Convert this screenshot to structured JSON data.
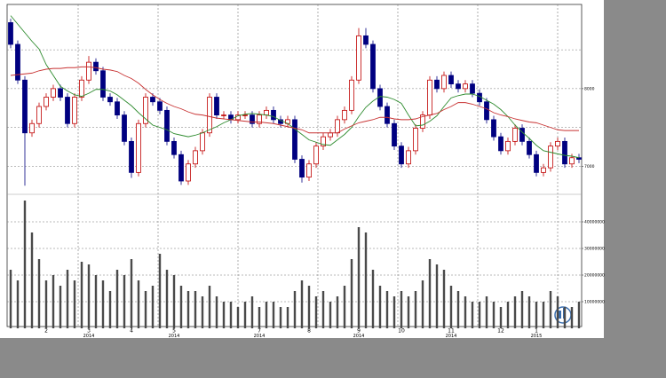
{
  "chart_data": [
    {
      "type": "candlestick",
      "ylim": [
        6650,
        9050
      ],
      "yticks": [
        7000,
        8000
      ],
      "ygrid": [
        7000,
        7500,
        8000,
        8500
      ],
      "up_color": "#ffffff",
      "up_border": "#c00000",
      "down_color": "#000080",
      "open": [
        8850,
        8570,
        8110,
        7430,
        7550,
        7770,
        7890,
        8000,
        7890,
        7550,
        7890,
        8110,
        8340,
        8230,
        7890,
        7830,
        7660,
        7320,
        6920,
        7550,
        7890,
        7830,
        7720,
        7320,
        7150,
        6810,
        7030,
        7200,
        7430,
        7890,
        7660,
        7660,
        7600,
        7660,
        7660,
        7550,
        7660,
        7720,
        7600,
        7550,
        7600,
        7090,
        6860,
        7030,
        7260,
        7380,
        7430,
        7600,
        7720,
        8110,
        8680,
        8570,
        8000,
        7770,
        7550,
        7260,
        7030,
        7200,
        7490,
        7660,
        8110,
        8000,
        8170,
        8060,
        8000,
        8060,
        7940,
        7830,
        7600,
        7380,
        7200,
        7320,
        7490,
        7320,
        7150,
        6920,
        6980,
        7260,
        7320,
        7030,
        7110
      ],
      "high": [
        8900,
        8620,
        8160,
        7600,
        7820,
        7940,
        8050,
        8050,
        7940,
        7940,
        8160,
        8420,
        8390,
        8280,
        7940,
        7880,
        7710,
        7370,
        7600,
        7940,
        7940,
        7880,
        7770,
        7370,
        7200,
        7080,
        7250,
        7480,
        7940,
        7940,
        7710,
        7710,
        7710,
        7710,
        7710,
        7710,
        7770,
        7770,
        7650,
        7650,
        7650,
        7140,
        7080,
        7310,
        7430,
        7480,
        7650,
        7770,
        8160,
        8780,
        8780,
        8620,
        8050,
        7820,
        7600,
        7310,
        7250,
        7540,
        7710,
        8160,
        8160,
        8220,
        8220,
        8110,
        8110,
        8110,
        7990,
        7880,
        7650,
        7430,
        7370,
        7540,
        7540,
        7370,
        7200,
        7030,
        7310,
        7370,
        7370,
        7160,
        7160
      ],
      "low": [
        8520,
        8060,
        6750,
        7380,
        7500,
        7720,
        7840,
        7840,
        7500,
        7500,
        7840,
        8060,
        8180,
        7840,
        7780,
        7610,
        7270,
        6850,
        6870,
        7500,
        7780,
        7670,
        7270,
        7100,
        6760,
        6760,
        6980,
        7150,
        7380,
        7610,
        7610,
        7550,
        7550,
        7610,
        7500,
        7500,
        7610,
        7550,
        7500,
        7500,
        7040,
        6790,
        6810,
        6980,
        7210,
        7330,
        7380,
        7550,
        7670,
        8060,
        8520,
        7950,
        7720,
        7500,
        7210,
        6980,
        6980,
        7150,
        7440,
        7610,
        7950,
        7950,
        8010,
        7950,
        7950,
        7890,
        7780,
        7550,
        7330,
        7150,
        7150,
        7270,
        7270,
        7100,
        6870,
        6870,
        6930,
        7210,
        6980,
        6980,
        7040
      ],
      "close": [
        8570,
        8110,
        7430,
        7550,
        7770,
        7890,
        8000,
        7890,
        7550,
        7890,
        8110,
        8340,
        8230,
        7890,
        7830,
        7660,
        7320,
        6920,
        7550,
        7890,
        7830,
        7720,
        7320,
        7150,
        6810,
        7030,
        7200,
        7430,
        7890,
        7660,
        7660,
        7600,
        7660,
        7660,
        7550,
        7660,
        7720,
        7600,
        7550,
        7600,
        7090,
        6860,
        7030,
        7260,
        7380,
        7430,
        7600,
        7720,
        8110,
        8680,
        8570,
        8000,
        7770,
        7550,
        7260,
        7030,
        7200,
        7490,
        7660,
        8110,
        8000,
        8170,
        8060,
        8000,
        8060,
        7940,
        7830,
        7600,
        7380,
        7200,
        7320,
        7490,
        7320,
        7150,
        6920,
        6980,
        7260,
        7320,
        7030,
        7110,
        7090
      ],
      "lines": [
        {
          "color": "#2e8b2e",
          "values": [
            8940,
            8830,
            8720,
            8610,
            8510,
            8310,
            8170,
            8030,
            7970,
            7920,
            7900,
            7940,
            7990,
            7990,
            7970,
            7920,
            7850,
            7780,
            7690,
            7610,
            7530,
            7500,
            7470,
            7420,
            7400,
            7380,
            7400,
            7430,
            7470,
            7510,
            7560,
            7600,
            7650,
            7670,
            7680,
            7670,
            7660,
            7640,
            7590,
            7550,
            7480,
            7410,
            7340,
            7310,
            7280,
            7270,
            7340,
            7410,
            7500,
            7640,
            7760,
            7840,
            7900,
            7890,
            7860,
            7810,
            7660,
            7520,
            7530,
            7580,
            7650,
            7770,
            7880,
            7910,
            7930,
            7930,
            7900,
            7850,
            7800,
            7730,
            7640,
            7530,
            7440,
            7360,
            7270,
            7200,
            7180,
            7160,
            7140,
            7130,
            7110
          ]
        },
        {
          "color": "#c83232",
          "values": [
            8170,
            8180,
            8190,
            8200,
            8230,
            8250,
            8260,
            8260,
            8270,
            8270,
            8280,
            8280,
            8270,
            8250,
            8240,
            8220,
            8170,
            8130,
            8070,
            7990,
            7920,
            7860,
            7810,
            7770,
            7740,
            7700,
            7670,
            7660,
            7640,
            7620,
            7610,
            7600,
            7590,
            7580,
            7570,
            7570,
            7560,
            7550,
            7530,
            7510,
            7490,
            7470,
            7430,
            7430,
            7430,
            7430,
            7430,
            7480,
            7520,
            7560,
            7580,
            7600,
            7630,
            7630,
            7610,
            7600,
            7600,
            7610,
            7640,
            7660,
            7680,
            7730,
            7770,
            7820,
            7820,
            7800,
            7770,
            7740,
            7690,
            7660,
            7640,
            7610,
            7590,
            7570,
            7560,
            7530,
            7500,
            7470,
            7460,
            7460,
            7460
          ]
        }
      ]
    },
    {
      "type": "bar",
      "ylim": [
        0,
        50000000
      ],
      "yticks": [
        10000000,
        20000000,
        30000000,
        40000000
      ],
      "ygrid": [
        10000000,
        20000000,
        30000000,
        40000000
      ],
      "color": "#4a4a4a",
      "values": [
        22000000,
        18000000,
        48000000,
        36000000,
        26000000,
        18000000,
        20000000,
        16000000,
        22000000,
        18000000,
        25000000,
        24000000,
        20000000,
        18000000,
        14000000,
        22000000,
        20000000,
        26000000,
        18000000,
        14000000,
        16000000,
        28000000,
        22000000,
        20000000,
        16000000,
        14000000,
        14000000,
        12000000,
        16000000,
        12000000,
        10000000,
        10000000,
        8000000,
        10000000,
        12000000,
        8000000,
        10000000,
        10000000,
        8000000,
        8000000,
        14000000,
        18000000,
        16000000,
        12000000,
        14000000,
        10000000,
        12000000,
        16000000,
        26000000,
        38000000,
        36000000,
        22000000,
        16000000,
        14000000,
        12000000,
        14000000,
        12000000,
        14000000,
        18000000,
        26000000,
        24000000,
        22000000,
        16000000,
        14000000,
        12000000,
        10000000,
        10000000,
        12000000,
        10000000,
        8000000,
        10000000,
        12000000,
        14000000,
        12000000,
        10000000,
        10000000,
        14000000,
        12000000,
        8000000,
        8000000,
        10000000
      ],
      "categories": [
        null,
        null,
        null,
        null,
        null,
        "2",
        null,
        null,
        null,
        null,
        null,
        "3",
        null,
        null,
        null,
        null,
        null,
        "4",
        null,
        null,
        null,
        null,
        null,
        "5",
        null,
        null,
        null,
        null,
        null,
        null,
        null,
        null,
        null,
        null,
        null,
        "7",
        null,
        null,
        null,
        null,
        null,
        null,
        "8",
        null,
        null,
        null,
        null,
        null,
        null,
        "9",
        null,
        null,
        null,
        null,
        null,
        "10",
        null,
        null,
        null,
        null,
        null,
        null,
        "11",
        null,
        null,
        null,
        null,
        null,
        null,
        "12",
        null,
        null,
        null,
        null,
        "1",
        null,
        null,
        null,
        null,
        null,
        null
      ],
      "year_labels": [
        null,
        null,
        null,
        null,
        null,
        null,
        null,
        null,
        null,
        null,
        null,
        "2014",
        null,
        null,
        null,
        null,
        null,
        null,
        null,
        null,
        null,
        null,
        null,
        "2014",
        null,
        null,
        null,
        null,
        null,
        null,
        null,
        null,
        null,
        null,
        null,
        "2014",
        null,
        null,
        null,
        null,
        null,
        null,
        null,
        null,
        null,
        null,
        null,
        null,
        null,
        "2014",
        null,
        null,
        null,
        null,
        null,
        null,
        null,
        null,
        null,
        null,
        null,
        null,
        "2014",
        null,
        null,
        null,
        null,
        null,
        null,
        null,
        null,
        null,
        null,
        null,
        "2015",
        null,
        null,
        null,
        null,
        null,
        null
      ]
    }
  ]
}
